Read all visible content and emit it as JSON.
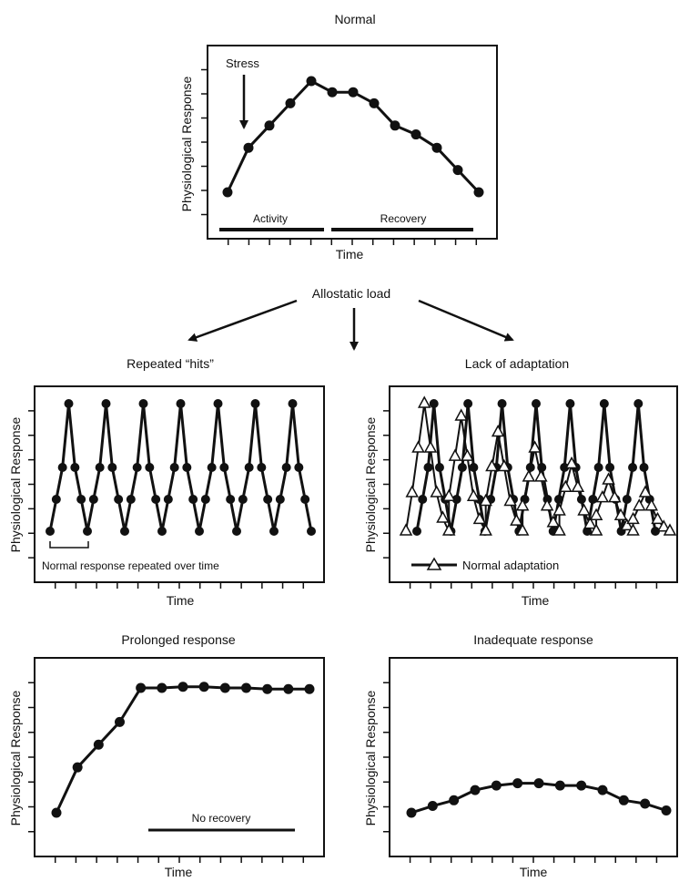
{
  "figure": {
    "allostatic_label": "Allostatic load",
    "stress_label": "Stress",
    "activity_label": "Activity",
    "recovery_label": "Recovery",
    "bracket_label": "Normal response repeated over time",
    "adaptation_legend": "Normal adaptation",
    "no_recovery_label": "No recovery"
  },
  "chart_data": [
    {
      "id": "normal",
      "type": "line",
      "title": "Normal",
      "xlabel": "Time",
      "ylabel": "Physiological Response",
      "marker": "filled-circle",
      "x": [
        1,
        2,
        3,
        4,
        5,
        6,
        7,
        8,
        9,
        10,
        11,
        12,
        13
      ],
      "y": [
        1,
        3,
        4,
        5,
        6,
        5.5,
        5.5,
        5,
        4,
        3.6,
        3,
        2,
        1
      ],
      "annotations": [
        "Stress",
        "Activity",
        "Recovery"
      ]
    },
    {
      "id": "repeated",
      "type": "line",
      "title": "Repeated “hits”",
      "xlabel": "Time",
      "ylabel": "Physiological Response",
      "marker": "filled-circle",
      "cycles": 7,
      "cycle_shape": [
        1,
        2,
        3,
        5,
        3,
        2,
        1
      ],
      "annotations": [
        "Normal response repeated over time"
      ]
    },
    {
      "id": "lack",
      "type": "line",
      "title": "Lack of adaptation",
      "xlabel": "Time",
      "ylabel": "Physiological Response",
      "series": [
        {
          "name": "",
          "marker": "filled-circle",
          "cycles": 7,
          "cycle_shape": [
            1,
            2,
            3,
            5,
            3,
            2,
            1
          ]
        },
        {
          "name": "Normal adaptation",
          "marker": "open-triangle",
          "peaks": [
            5,
            4.6,
            4.1,
            3.6,
            3.1,
            2.6,
            2.2
          ]
        }
      ]
    },
    {
      "id": "prolonged",
      "type": "line",
      "title": "Prolonged response",
      "xlabel": "Time",
      "ylabel": "Physiological Response",
      "marker": "filled-circle",
      "x": [
        1,
        2,
        3,
        4,
        5,
        6,
        7,
        8,
        9,
        10,
        11,
        12,
        13
      ],
      "y": [
        1,
        3,
        4,
        5,
        6.5,
        6.5,
        6.55,
        6.55,
        6.5,
        6.5,
        6.45,
        6.45,
        6.45
      ],
      "annotations": [
        "No recovery"
      ]
    },
    {
      "id": "inadequate",
      "type": "line",
      "title": "Inadequate response",
      "xlabel": "Time",
      "ylabel": "Physiological Response",
      "marker": "filled-circle",
      "x": [
        1,
        2,
        3,
        4,
        5,
        6,
        7,
        8,
        9,
        10,
        11,
        12,
        13
      ],
      "y": [
        1,
        1.3,
        1.55,
        2,
        2.2,
        2.3,
        2.3,
        2.2,
        2.2,
        2,
        1.55,
        1.4,
        1.1
      ],
      "annotations": []
    }
  ]
}
